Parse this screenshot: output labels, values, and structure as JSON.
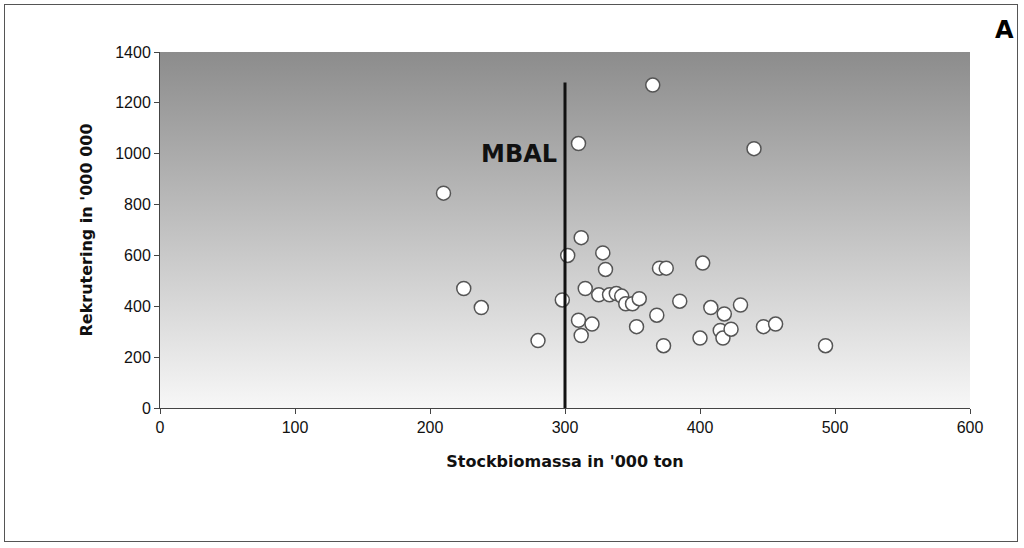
{
  "chart_data": {
    "type": "scatter",
    "panel_label": "A",
    "x_label": "Stockbiomassa in '000 ton",
    "y_label": "Rekrutering in '000 000",
    "x": [
      210,
      225,
      238,
      280,
      298,
      302,
      310,
      312,
      310,
      312,
      315,
      320,
      325,
      328,
      330,
      333,
      338,
      342,
      345,
      350,
      353,
      355,
      365,
      368,
      370,
      375,
      373,
      385,
      400,
      402,
      408,
      415,
      418,
      417,
      423,
      430,
      440,
      447,
      456,
      493
    ],
    "values": [
      845,
      470,
      395,
      265,
      425,
      600,
      1040,
      670,
      345,
      285,
      470,
      330,
      445,
      610,
      545,
      445,
      450,
      440,
      410,
      410,
      320,
      430,
      1270,
      365,
      550,
      550,
      245,
      420,
      275,
      570,
      395,
      305,
      370,
      275,
      310,
      405,
      1020,
      320,
      330,
      245
    ],
    "color": "#ffffff",
    "marker": "circle",
    "xlim": [
      0,
      600
    ],
    "xticks": [
      0,
      100,
      200,
      300,
      400,
      500,
      600
    ],
    "ylim": [
      0,
      1400
    ],
    "yticks": [
      0,
      200,
      400,
      600,
      800,
      1000,
      1200,
      1400
    ],
    "grid": false,
    "lines": [
      {
        "label": "MBAL",
        "x": 300,
        "ymax": 1280,
        "color": "#111111"
      }
    ]
  }
}
